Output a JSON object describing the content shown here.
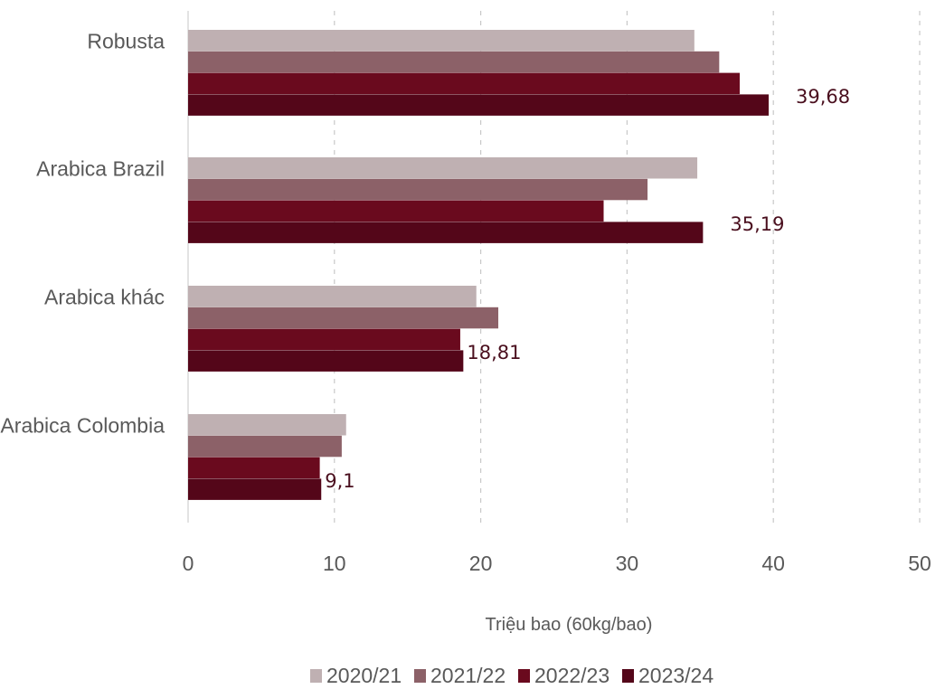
{
  "chart_data": {
    "type": "bar",
    "orientation": "horizontal",
    "categories": [
      "Robusta",
      "Arabica Brazil",
      "Arabica khác",
      "Arabica Colombia"
    ],
    "series": [
      {
        "name": "2020/21",
        "color": "#bfb0b2",
        "values": [
          34.6,
          34.8,
          19.7,
          10.8
        ]
      },
      {
        "name": "2021/22",
        "color": "#8c6168",
        "values": [
          36.3,
          31.4,
          21.2,
          10.5
        ]
      },
      {
        "name": "2022/23",
        "color": "#6a0a1e",
        "values": [
          37.7,
          28.4,
          18.6,
          9.0
        ]
      },
      {
        "name": "2023/24",
        "color": "#540619",
        "values": [
          39.68,
          35.19,
          18.81,
          9.1
        ]
      }
    ],
    "data_labels": [
      {
        "series": "2023/24",
        "category": "Robusta",
        "text": "39,68"
      },
      {
        "series": "2023/24",
        "category": "Arabica Brazil",
        "text": "35,19"
      },
      {
        "series": "2023/24",
        "category": "Arabica khác",
        "text": "18,81"
      },
      {
        "series": "2023/24",
        "category": "Arabica Colombia",
        "text": "9,1"
      }
    ],
    "xlabel": "Triệu bao (60kg/bao)",
    "xlim": [
      0,
      50
    ],
    "xticks": [
      0,
      10,
      20,
      30,
      40,
      50
    ],
    "grid": "vertical-dashed",
    "legend_placement": "bottom"
  }
}
